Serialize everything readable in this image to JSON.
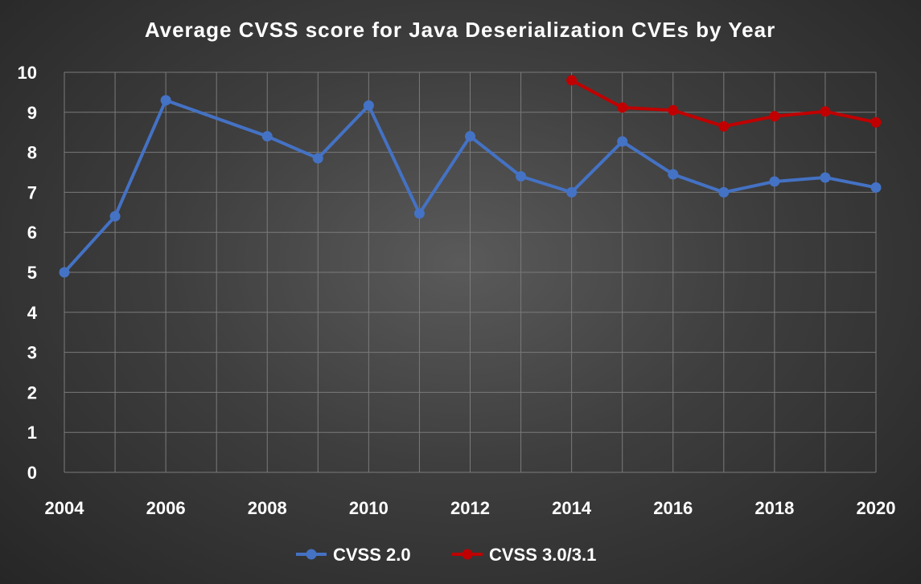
{
  "chart_data": {
    "type": "line",
    "title": "Average CVSS score for Java Deserialization CVEs by Year",
    "xlabel": "",
    "ylabel": "",
    "xlim": [
      2004,
      2020
    ],
    "ylim": [
      0,
      10
    ],
    "x_ticks": [
      2004,
      2006,
      2008,
      2010,
      2012,
      2014,
      2016,
      2018,
      2020
    ],
    "y_ticks": [
      0,
      1,
      2,
      3,
      4,
      5,
      6,
      7,
      8,
      9,
      10
    ],
    "grid": true,
    "legend_position": "bottom",
    "series": [
      {
        "name": "CVSS 2.0",
        "color": "#4472c4",
        "x": [
          2004,
          2005,
          2006,
          2008,
          2009,
          2010,
          2011,
          2012,
          2013,
          2014,
          2015,
          2016,
          2017,
          2018,
          2019,
          2020
        ],
        "values": [
          5.0,
          6.4,
          9.3,
          8.4,
          7.85,
          9.17,
          6.47,
          8.4,
          7.4,
          7.0,
          8.27,
          7.45,
          7.0,
          7.27,
          7.37,
          7.12
        ]
      },
      {
        "name": "CVSS 3.0/3.1",
        "color": "#c00000",
        "x": [
          2014,
          2015,
          2016,
          2017,
          2018,
          2019,
          2020
        ],
        "values": [
          9.8,
          9.12,
          9.05,
          8.65,
          8.9,
          9.02,
          8.75
        ]
      }
    ]
  }
}
